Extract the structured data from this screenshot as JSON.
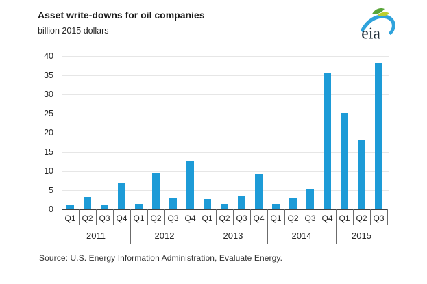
{
  "header": {
    "title": "Asset write-downs for oil companies",
    "subtitle": "billion 2015 dollars"
  },
  "logo": {
    "text": "eia"
  },
  "source": "Source:  U.S. Energy Information Administration, Evaluate Energy.",
  "colors": {
    "bar": "#1D9BD7",
    "grid": "#e6e6e6",
    "axis": "#404040",
    "tick": "#6b6b6b",
    "text": "#262626",
    "logo_text": "#1c2b36",
    "logo_green": "#58a538",
    "logo_yellow": "#bccf2f",
    "logo_blue": "#2fa3dc"
  },
  "chart_data": {
    "type": "bar",
    "title": "Asset write-downs for oil companies",
    "ylabel": "billion 2015 dollars",
    "ylim": [
      0,
      40
    ],
    "y_ticks": [
      0,
      5,
      10,
      15,
      20,
      25,
      30,
      35,
      40
    ],
    "grid": "horizontal-light",
    "legend": "none",
    "years": [
      {
        "label": "2011",
        "quarters": [
          "Q1",
          "Q2",
          "Q3",
          "Q4"
        ],
        "values": [
          1.0,
          3.3,
          1.3,
          6.8
        ]
      },
      {
        "label": "2012",
        "quarters": [
          "Q1",
          "Q2",
          "Q3",
          "Q4"
        ],
        "values": [
          1.4,
          9.4,
          3.0,
          12.6
        ]
      },
      {
        "label": "2013",
        "quarters": [
          "Q1",
          "Q2",
          "Q3",
          "Q4"
        ],
        "values": [
          2.6,
          1.5,
          3.6,
          9.2
        ]
      },
      {
        "label": "2014",
        "quarters": [
          "Q1",
          "Q2",
          "Q3",
          "Q4"
        ],
        "values": [
          1.4,
          3.0,
          5.4,
          35.6
        ]
      },
      {
        "label": "2015",
        "quarters": [
          "Q1",
          "Q2",
          "Q3"
        ],
        "values": [
          25.2,
          18.0,
          38.2
        ]
      }
    ]
  }
}
